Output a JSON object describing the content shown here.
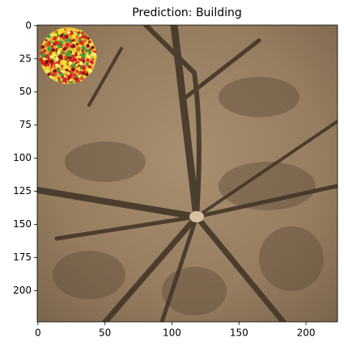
{
  "chart_data": {
    "type": "image",
    "title": "Prediction: Building",
    "xlim": [
      -0.5,
      223.5
    ],
    "ylim": [
      223.5,
      -0.5
    ],
    "xticks": [
      0,
      50,
      100,
      150,
      200
    ],
    "yticks": [
      0,
      25,
      50,
      75,
      100,
      125,
      150,
      175,
      200
    ]
  }
}
